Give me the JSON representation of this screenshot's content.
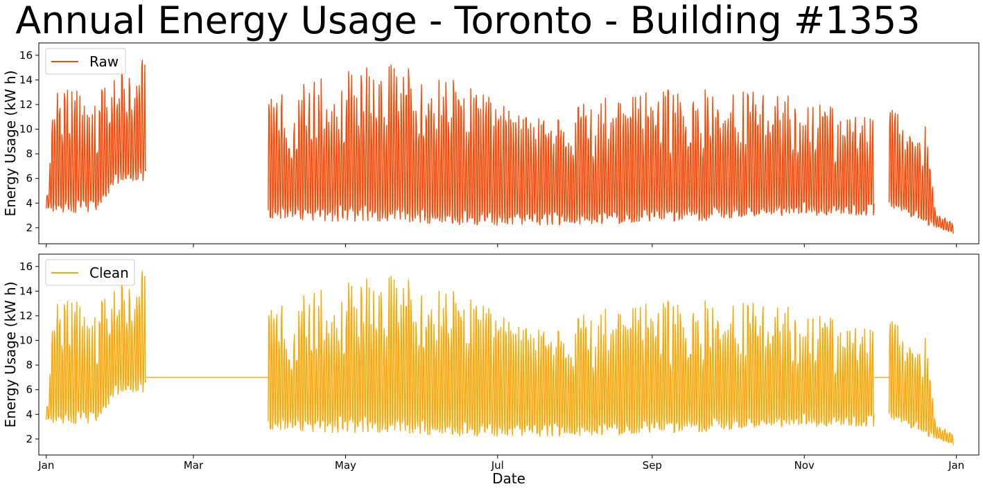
{
  "page": {
    "title": "Annual Energy Usage - Toronto - Building #1353"
  },
  "chart_data": [
    {
      "type": "line",
      "panel": "top",
      "title": "",
      "ylabel": "Energy Usage (kW h)",
      "xlabel": "",
      "xlim": [
        "2017-12-29",
        "2019-01-10"
      ],
      "ylim": [
        0.7,
        17.0
      ],
      "yticks": [
        2,
        4,
        6,
        8,
        10,
        12,
        14,
        16
      ],
      "xticks": [
        "2018-01-01",
        "2018-03-01",
        "2018-05-01",
        "2018-07-01",
        "2018-09-01",
        "2018-11-01",
        "2019-01-01"
      ],
      "xtick_labels": [
        "Jan",
        "Mar",
        "May",
        "Jul",
        "Sep",
        "Nov",
        "Jan"
      ],
      "show_xtick_labels": false,
      "grid": false,
      "legend": {
        "position": "top-left",
        "entries": [
          "Raw"
        ]
      },
      "series": [
        {
          "name": "Raw",
          "color": "#FF4500",
          "segments": [
            {
              "start": "2018-01-01",
              "end": "2018-02-10",
              "low": 2.8,
              "high": 16.3,
              "envelope": [
                [
                  0.0,
                  3.5,
                  4.2
                ],
                [
                  0.08,
                  3.3,
                  13.5
                ],
                [
                  0.28,
                  3.2,
                  13.2
                ],
                [
                  0.52,
                  3.2,
                  13.0
                ],
                [
                  0.7,
                  5.5,
                  15.5
                ],
                [
                  0.85,
                  5.8,
                  14.5
                ],
                [
                  1.0,
                  5.8,
                  16.3
                ]
              ]
            },
            {
              "start": "2018-03-31",
              "end": "2018-11-29",
              "low": 1.8,
              "high": 15.8,
              "envelope": [
                [
                  0.0,
                  2.8,
                  12.5
                ],
                [
                  0.1,
                  2.5,
                  14.5
                ],
                [
                  0.2,
                  2.5,
                  15.5
                ],
                [
                  0.33,
                  2.2,
                  13.8
                ],
                [
                  0.45,
                  2.2,
                  11.0
                ],
                [
                  0.55,
                  2.3,
                  12.5
                ],
                [
                  0.7,
                  2.5,
                  13.5
                ],
                [
                  0.85,
                  3.0,
                  12.8
                ],
                [
                  1.0,
                  3.0,
                  11.0
                ]
              ]
            },
            {
              "start": "2018-12-05",
              "end": "2018-12-31",
              "low": 1.4,
              "high": 12.8,
              "envelope": [
                [
                  0.0,
                  3.5,
                  12.8
                ],
                [
                  0.3,
                  3.0,
                  9.5
                ],
                [
                  0.55,
                  2.2,
                  11.8
                ],
                [
                  0.75,
                  2.0,
                  3.2
                ],
                [
                  1.0,
                  1.5,
                  2.6
                ]
              ]
            }
          ]
        }
      ]
    },
    {
      "type": "line",
      "panel": "bottom",
      "title": "",
      "ylabel": "Energy Usage (kW h)",
      "xlabel": "Date",
      "xlim": [
        "2017-12-29",
        "2019-01-10"
      ],
      "ylim": [
        0.7,
        17.0
      ],
      "yticks": [
        2,
        4,
        6,
        8,
        10,
        12,
        14,
        16
      ],
      "xticks": [
        "2018-01-01",
        "2018-03-01",
        "2018-05-01",
        "2018-07-01",
        "2018-09-01",
        "2018-11-01",
        "2019-01-01"
      ],
      "xtick_labels": [
        "Jan",
        "Mar",
        "May",
        "Jul",
        "Sep",
        "Nov",
        "Jan"
      ],
      "show_xtick_labels": true,
      "grid": false,
      "legend": {
        "position": "top-left",
        "entries": [
          "Clean"
        ]
      },
      "series": [
        {
          "name": "Clean",
          "color": "#FFA500",
          "segments": [
            {
              "start": "2018-01-01",
              "end": "2018-02-10",
              "low": 2.8,
              "high": 16.3,
              "envelope": [
                [
                  0.0,
                  3.5,
                  4.2
                ],
                [
                  0.08,
                  3.3,
                  13.5
                ],
                [
                  0.28,
                  3.2,
                  13.2
                ],
                [
                  0.52,
                  3.2,
                  13.0
                ],
                [
                  0.7,
                  5.5,
                  15.5
                ],
                [
                  0.85,
                  5.8,
                  14.5
                ],
                [
                  1.0,
                  5.8,
                  16.3
                ]
              ]
            },
            {
              "start": "2018-02-10",
              "end": "2018-03-31",
              "flat": 7.0
            },
            {
              "start": "2018-03-31",
              "end": "2018-11-29",
              "low": 1.8,
              "high": 15.8,
              "envelope": [
                [
                  0.0,
                  2.8,
                  12.5
                ],
                [
                  0.1,
                  2.5,
                  14.5
                ],
                [
                  0.2,
                  2.5,
                  15.5
                ],
                [
                  0.33,
                  2.2,
                  13.8
                ],
                [
                  0.45,
                  2.2,
                  11.0
                ],
                [
                  0.55,
                  2.3,
                  12.5
                ],
                [
                  0.7,
                  2.5,
                  13.5
                ],
                [
                  0.85,
                  3.0,
                  12.8
                ],
                [
                  1.0,
                  3.0,
                  11.0
                ]
              ]
            },
            {
              "start": "2018-11-29",
              "end": "2018-12-05",
              "flat": 7.0
            },
            {
              "start": "2018-12-05",
              "end": "2018-12-31",
              "low": 1.4,
              "high": 12.8,
              "envelope": [
                [
                  0.0,
                  3.5,
                  12.8
                ],
                [
                  0.3,
                  3.0,
                  9.5
                ],
                [
                  0.55,
                  2.2,
                  11.8
                ],
                [
                  0.75,
                  2.0,
                  3.2
                ],
                [
                  1.0,
                  1.5,
                  2.6
                ]
              ]
            }
          ]
        }
      ]
    }
  ]
}
